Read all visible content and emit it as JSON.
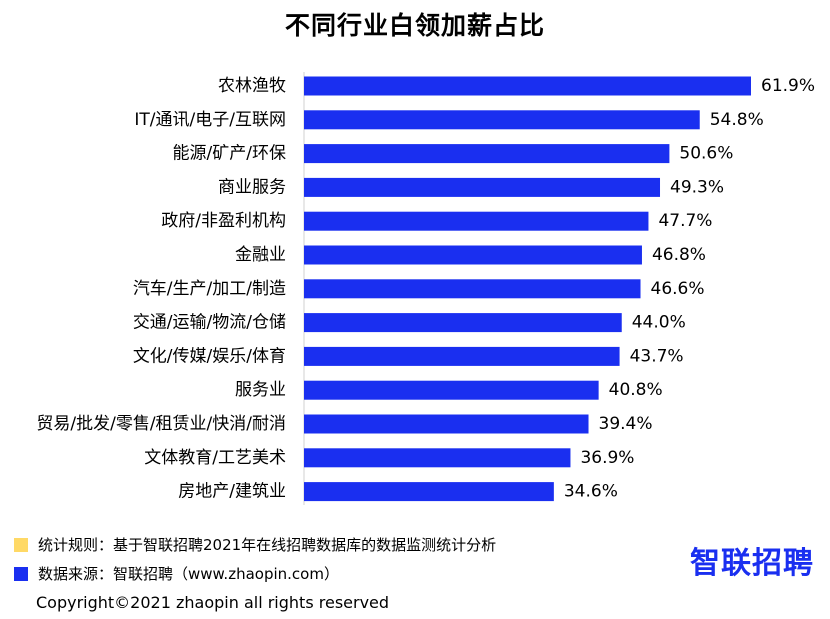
{
  "chart_data": {
    "type": "bar",
    "orientation": "horizontal",
    "title": "不同行业白领加薪占比",
    "categories": [
      "农林渔牧",
      "IT/通讯/电子/互联网",
      "能源/矿产/环保",
      "商业服务",
      "政府/非盈利机构",
      "金融业",
      "汽车/生产/加工/制造",
      "交通/运输/物流/仓储",
      "文化/传媒/娱乐/体育",
      "服务业",
      "贸易/批发/零售/租赁业/快消/耐消",
      "文体教育/工艺美术",
      "房地产/建筑业"
    ],
    "values": [
      61.9,
      54.8,
      50.6,
      49.3,
      47.7,
      46.8,
      46.6,
      44.0,
      43.7,
      40.8,
      39.4,
      36.9,
      34.6
    ],
    "value_labels": [
      "61.9%",
      "54.8%",
      "50.6%",
      "49.3%",
      "47.7%",
      "46.8%",
      "46.6%",
      "44.0%",
      "43.7%",
      "40.8%",
      "39.4%",
      "36.9%",
      "34.6%"
    ],
    "xlim": [
      0,
      61.9
    ],
    "bar_color": "#1a2ff0",
    "grid": false,
    "legend": "bottom-left"
  },
  "legend": {
    "rule": {
      "text": "统计规则：基于智联招聘2021年在线招聘数据库的数据监测统计分析",
      "color": "#ffd966"
    },
    "source": {
      "text": "数据来源：智联招聘（www.zhaopin.com）",
      "color": "#1a2ff0"
    }
  },
  "logo": {
    "text": "智联招聘",
    "color": "#1a2ff0"
  },
  "footer": {
    "copyright": "Copyright©2021 zhaopin all rights reserved"
  }
}
